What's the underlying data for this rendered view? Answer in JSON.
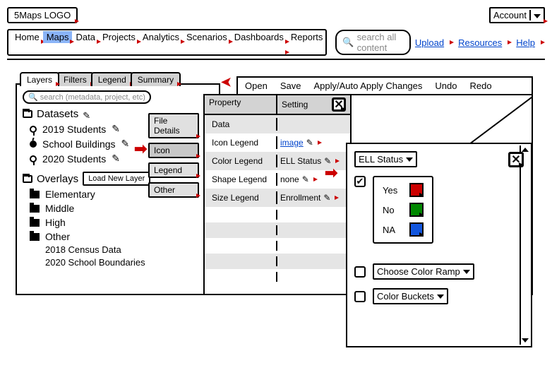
{
  "header": {
    "logo": "5Maps LOGO",
    "account": "Account",
    "nav": [
      "Home",
      "Maps",
      "Data",
      "Projects",
      "Analytics",
      "Scenarios",
      "Dashboards",
      "Reports"
    ],
    "nav_active_index": 1,
    "search_placeholder": "search all content",
    "upload": "Upload",
    "resources": "Resources",
    "help": "Help"
  },
  "left_tabs": [
    "Layers",
    "Filters",
    "Legend",
    "Summary"
  ],
  "left_active_tab": 0,
  "layers": {
    "search_placeholder": "search (metadata, project, etc)",
    "datasets_label": "Datasets",
    "items": [
      {
        "icon": "pin",
        "label": "2019 Students"
      },
      {
        "icon": "apple",
        "label": "School Buildings"
      },
      {
        "icon": "pin",
        "label": "2020 Students"
      }
    ],
    "overlays_label": "Overlays",
    "load_button": "Load New Layer",
    "overlay_items": [
      "Elementary",
      "Middle",
      "High",
      "Other"
    ],
    "other_items": [
      "2018 Census Data",
      "2020 School Boundaries"
    ]
  },
  "side_buttons": [
    "File Details",
    "Icon",
    "Legend",
    "Other"
  ],
  "side_active_index": 1,
  "toolbar": [
    "Open",
    "Save",
    "Apply/Auto Apply Changes",
    "Undo",
    "Redo"
  ],
  "property_panel": {
    "col1": "Property",
    "col2": "Setting",
    "rows": [
      {
        "prop": "Data",
        "setting": "",
        "link": false
      },
      {
        "prop": "Icon Legend",
        "setting": "image",
        "link": true
      },
      {
        "prop": "Color Legend",
        "setting": "ELL Status",
        "link": false
      },
      {
        "prop": "Shape Legend",
        "setting": "none",
        "link": false
      },
      {
        "prop": "Size Legend",
        "setting": "Enrollment",
        "link": false
      }
    ]
  },
  "color_panel": {
    "dropdown": "ELL Status",
    "legend": [
      {
        "label": "Yes",
        "color": "#cc0000"
      },
      {
        "label": "No",
        "color": "#008800"
      },
      {
        "label": "NA",
        "color": "#1155dd"
      }
    ],
    "ramp": "Choose Color Ramp",
    "buckets": "Color Buckets"
  }
}
